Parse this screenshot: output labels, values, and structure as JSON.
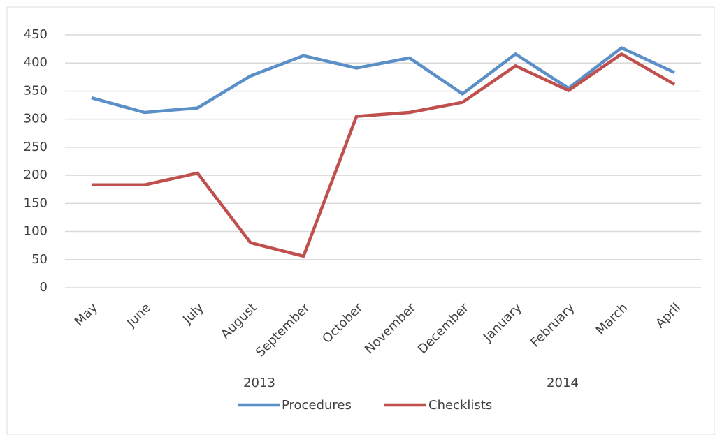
{
  "chart_data": {
    "type": "line",
    "categories": [
      "May",
      "June",
      "July",
      "August",
      "September",
      "October",
      "November",
      "December",
      "January",
      "February",
      "March",
      "April"
    ],
    "series": [
      {
        "name": "Procedures",
        "color": "#5b8fc7",
        "values": [
          338,
          312,
          320,
          377,
          413,
          391,
          409,
          345,
          416,
          355,
          427,
          383
        ]
      },
      {
        "name": "Checklists",
        "color": "#c0504d",
        "values": [
          183,
          183,
          204,
          80,
          56,
          305,
          312,
          330,
          395,
          351,
          416,
          362
        ]
      }
    ],
    "annotations": [
      "2013",
      "2014"
    ],
    "ylim": [
      0,
      450
    ],
    "yticks": [
      0,
      50,
      100,
      150,
      200,
      250,
      300,
      350,
      400,
      450
    ],
    "grid": true,
    "legend": "bottom"
  }
}
